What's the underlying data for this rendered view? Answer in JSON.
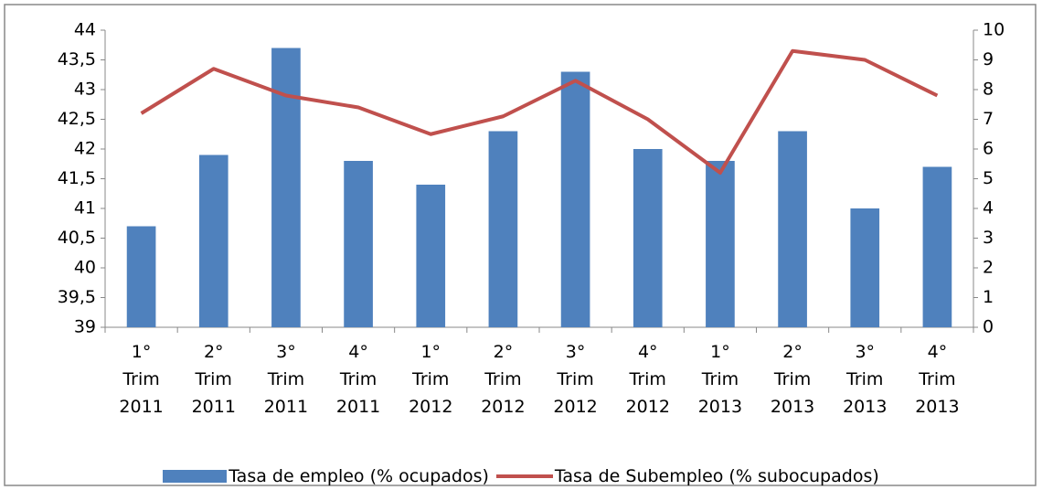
{
  "chart_data": {
    "type": "bar-line",
    "categories": [
      "1° Trim 2011",
      "2° Trim 2011",
      "3° Trim 2011",
      "4° Trim 2011",
      "1° Trim 2012",
      "2° Trim 2012",
      "3° Trim 2012",
      "4° Trim 2012",
      "1° Trim 2013",
      "2° Trim 2013",
      "3° Trim 2013",
      "4° Trim 2013"
    ],
    "series": [
      {
        "name": "Tasa de empleo (% ocupados)",
        "type": "bar",
        "color": "#4f81bd",
        "values": [
          40.7,
          41.9,
          43.7,
          41.8,
          41.4,
          42.3,
          43.3,
          42.0,
          41.8,
          42.3,
          41.0,
          41.7
        ]
      },
      {
        "name": "Tasa de Subempleo (% subocupados)",
        "type": "line",
        "axis": "y2",
        "color": "#c0504d",
        "values": [
          7.2,
          8.7,
          7.8,
          7.4,
          6.5,
          7.1,
          8.3,
          7.0,
          5.2,
          9.3,
          9.0,
          7.8
        ]
      }
    ],
    "ylim": [
      39,
      44
    ],
    "yticks": [
      39,
      {
        "value": 39.5,
        "label": "39,5"
      },
      40,
      {
        "value": 40.5,
        "label": "40,5"
      },
      41,
      {
        "value": 41.5,
        "label": "41,5"
      },
      42,
      {
        "value": 42.5,
        "label": "42,5"
      },
      43,
      {
        "value": 43.5,
        "label": "43,5"
      },
      44
    ],
    "y2lim": [
      0,
      10
    ],
    "y2ticks": [
      0,
      1,
      2,
      3,
      4,
      5,
      6,
      7,
      8,
      9,
      10
    ],
    "grid": false,
    "legend": "bottom"
  }
}
